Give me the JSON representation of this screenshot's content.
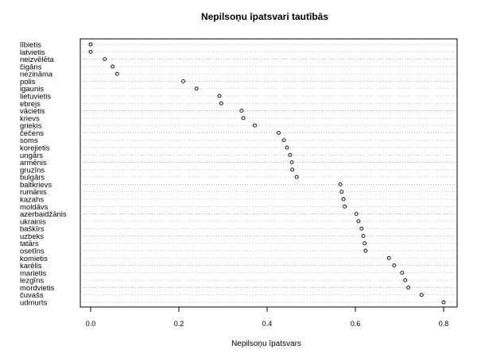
{
  "chart_data": {
    "type": "scatter",
    "variant": "dotchart",
    "title": "Nepilsoņu īpatsvari tautībās",
    "xlabel": "Nepilsoņu īpatsvars",
    "ylabel": "",
    "xlim": [
      0,
      0.8
    ],
    "xticks": [
      0.0,
      0.2,
      0.4,
      0.6,
      0.8
    ],
    "xtick_labels": [
      "0.0",
      "0.2",
      "0.4",
      "0.6",
      "0.8"
    ],
    "grid": "dotted horizontal lines per category",
    "categories": [
      "lībietis",
      "latvietis",
      "neizvēlēta",
      "čigāns",
      "nezināma",
      "polis",
      "igaunis",
      "lietuvietis",
      "ebrejs",
      "vācietis",
      "krievs",
      "grieķis",
      "čečens",
      "soms",
      "korejietis",
      "ungārs",
      "armēnis",
      "gruzīns",
      "bulgārs",
      "baltkrievs",
      "rumānis",
      "kazahs",
      "moldāvs",
      "azerbaidžānis",
      "ukrainis",
      "baškīrs",
      "uzbeks",
      "tatārs",
      "osetīns",
      "komietis",
      "karēlis",
      "marietis",
      "lezgīns",
      "mordvietis",
      "čuvašs",
      "udmurts"
    ],
    "values": [
      0.0,
      0.0,
      0.032,
      0.05,
      0.06,
      0.21,
      0.24,
      0.292,
      0.296,
      0.342,
      0.346,
      0.372,
      0.426,
      0.438,
      0.445,
      0.452,
      0.456,
      0.457,
      0.467,
      0.566,
      0.569,
      0.573,
      0.576,
      0.602,
      0.607,
      0.614,
      0.618,
      0.621,
      0.623,
      0.676,
      0.688,
      0.706,
      0.713,
      0.72,
      0.75,
      0.8
    ]
  }
}
